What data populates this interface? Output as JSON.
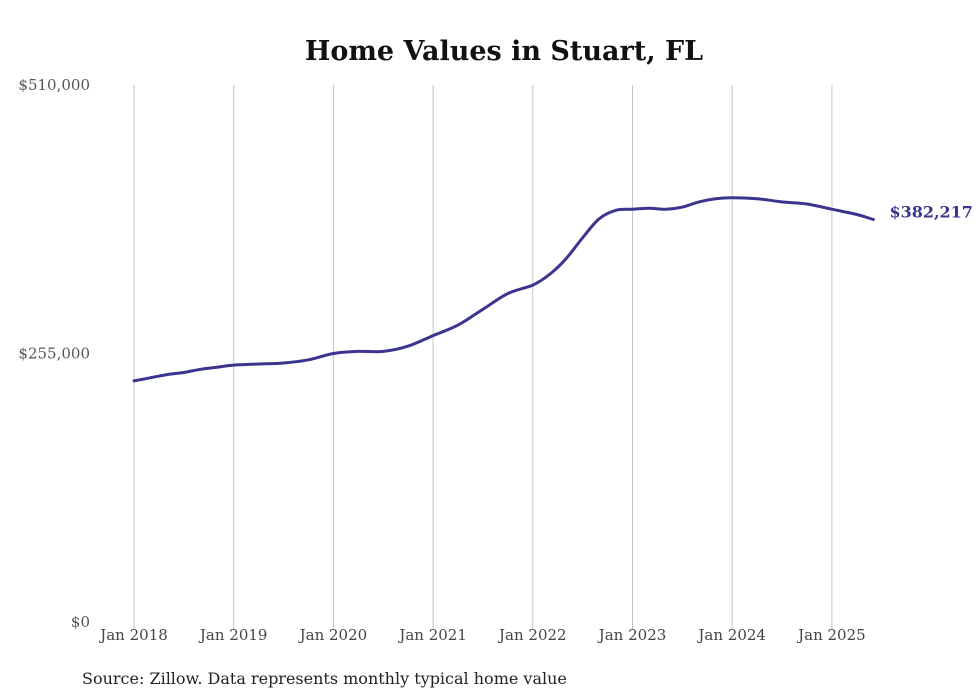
{
  "chart_data": {
    "type": "line",
    "title": "Home Values in Stuart, FL",
    "source": "Source: Zillow. Data represents monthly typical home value",
    "ylim": [
      0,
      510000
    ],
    "y_ticks": [
      "$0",
      "$255,000",
      "$510,000"
    ],
    "x_ticks": [
      "Jan 2018",
      "Jan 2019",
      "Jan 2020",
      "Jan 2021",
      "Jan 2022",
      "Jan 2023",
      "Jan 2024",
      "Jan 2025"
    ],
    "grid": "vertical",
    "line_color": "#3b3590",
    "end_label": "$382,217",
    "series": [
      {
        "x": [
          "2018-01",
          "2018-03",
          "2018-05",
          "2018-07",
          "2018-09",
          "2018-11",
          "2019-01",
          "2019-04",
          "2019-07",
          "2019-10",
          "2020-01",
          "2020-04",
          "2020-07",
          "2020-10",
          "2021-01",
          "2021-04",
          "2021-07",
          "2021-10",
          "2022-01",
          "2022-03",
          "2022-05",
          "2022-07",
          "2022-09",
          "2022-11",
          "2023-01",
          "2023-03",
          "2023-05",
          "2023-07",
          "2023-09",
          "2023-11",
          "2024-01",
          "2024-04",
          "2024-07",
          "2024-10",
          "2025-01",
          "2025-04",
          "2025-06"
        ],
        "values": [
          229000,
          232000,
          235000,
          237000,
          240000,
          242000,
          244000,
          245000,
          246000,
          249000,
          255000,
          257000,
          257000,
          262000,
          272000,
          282000,
          297000,
          312000,
          320000,
          330000,
          345000,
          365000,
          383000,
          391000,
          392000,
          393000,
          392000,
          394000,
          399000,
          402000,
          403000,
          402000,
          399000,
          397000,
          392000,
          387000,
          382217
        ]
      }
    ]
  }
}
